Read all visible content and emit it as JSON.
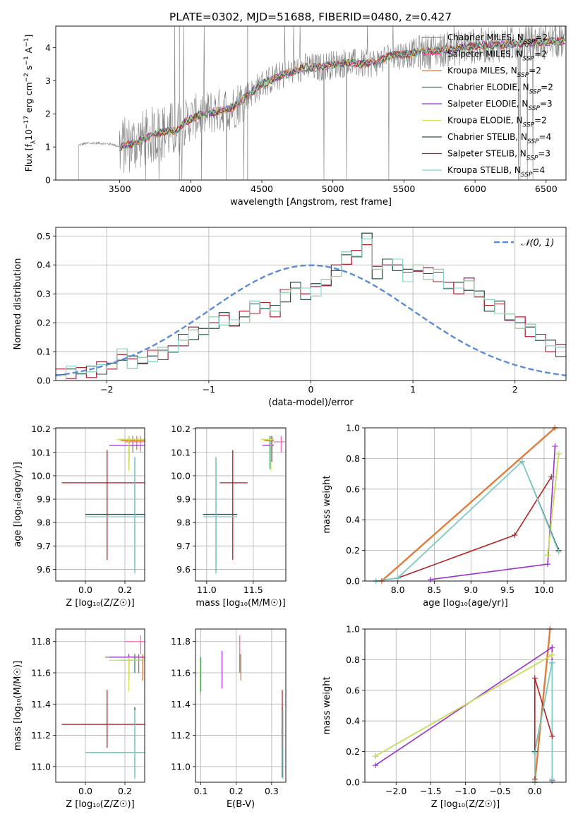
{
  "figure_title": "PLATE=0302, MJD=51688, FIBERID=0480, z=0.427",
  "colors": {
    "chabrier_miles": "#808080",
    "salpeter_miles": "#ff69b4",
    "kroupa_miles": "#e07b39",
    "chabrier_elodie": "#2e8b57",
    "salpeter_elodie": "#9932cc",
    "kroupa_elodie": "#d4e157",
    "chabrier_stelib": "#2f4f4f",
    "salpeter_stelib": "#b22222",
    "kroupa_stelib": "#7fd3c9",
    "data_gray": "#808080",
    "normal_curve": "#5b8bd9",
    "grid": "#b0b0b0"
  },
  "legend_spectrum": [
    {
      "name": "Chabrier MILES",
      "n": "2",
      "color_key": "chabrier_miles"
    },
    {
      "name": "Salpeter MILES",
      "n": "2",
      "color_key": "salpeter_miles"
    },
    {
      "name": "Kroupa MILES",
      "n": "2",
      "color_key": "kroupa_miles"
    },
    {
      "name": "Chabrier ELODIE",
      "n": "2",
      "color_key": "chabrier_elodie"
    },
    {
      "name": "Salpeter ELODIE",
      "n": "3",
      "color_key": "salpeter_elodie"
    },
    {
      "name": "Kroupa ELODIE",
      "n": "2",
      "color_key": "kroupa_elodie"
    },
    {
      "name": "Chabrier STELIB",
      "n": "4",
      "color_key": "chabrier_stelib"
    },
    {
      "name": "Salpeter STELIB",
      "n": "3",
      "color_key": "salpeter_stelib"
    },
    {
      "name": "Kroupa STELIB",
      "n": "4",
      "color_key": "kroupa_stelib"
    }
  ],
  "legend_hist": "𝒩(0, 1)",
  "chart_data": [
    {
      "id": "spectrum",
      "type": "line",
      "xlabel": "wavelength [Angstrom, rest frame]",
      "ylabel_parts": [
        "Flux [f",
        "λ",
        "10",
        "−17",
        " erg cm",
        "−2",
        " s",
        "−1",
        " A",
        "−1",
        "]"
      ],
      "xlim": [
        3050,
        6640
      ],
      "ylim": [
        0,
        4.65
      ],
      "xticks": [
        3500,
        4000,
        4500,
        5000,
        5500,
        6000,
        6500
      ],
      "yticks": [
        0,
        1,
        2,
        3,
        4
      ],
      "grid": false,
      "legend_position": "top-right",
      "continuum_nodes": [
        [
          3210,
          1.05
        ],
        [
          3250,
          1.1
        ],
        [
          3350,
          1.12
        ],
        [
          3450,
          1.08
        ],
        [
          3500,
          1.0
        ],
        [
          3600,
          1.12
        ],
        [
          3700,
          1.3
        ],
        [
          3800,
          1.45
        ],
        [
          3900,
          1.5
        ],
        [
          3960,
          1.75
        ],
        [
          4050,
          1.95
        ],
        [
          4150,
          2.05
        ],
        [
          4300,
          2.2
        ],
        [
          4400,
          2.55
        ],
        [
          4500,
          2.9
        ],
        [
          4600,
          3.1
        ],
        [
          4700,
          3.25
        ],
        [
          4800,
          3.4
        ],
        [
          4900,
          3.4
        ],
        [
          5000,
          3.5
        ],
        [
          5100,
          3.55
        ],
        [
          5200,
          3.5
        ],
        [
          5300,
          3.55
        ],
        [
          5400,
          3.75
        ],
        [
          5600,
          3.85
        ],
        [
          5800,
          3.95
        ],
        [
          6000,
          4.05
        ],
        [
          6200,
          4.1
        ],
        [
          6400,
          4.15
        ],
        [
          6600,
          4.2
        ]
      ]
    },
    {
      "id": "residuals",
      "type": "histogram",
      "xlabel": "(data-model)/error",
      "ylabel": "Normed distribution",
      "xlim": [
        -2.5,
        2.5
      ],
      "ylim": [
        0,
        0.53
      ],
      "xticks": [
        -2,
        -1,
        0,
        1,
        2
      ],
      "yticks": [
        0,
        0.1,
        0.2,
        0.3,
        0.4,
        0.5
      ],
      "grid": true,
      "legend_position": "top-right",
      "bin_width": 0.1,
      "bin_start": -2.5,
      "base_values": [
        0.02,
        0.025,
        0.035,
        0.03,
        0.04,
        0.05,
        0.09,
        0.06,
        0.07,
        0.085,
        0.09,
        0.11,
        0.14,
        0.16,
        0.17,
        0.2,
        0.21,
        0.2,
        0.22,
        0.25,
        0.26,
        0.24,
        0.29,
        0.33,
        0.3,
        0.31,
        0.34,
        0.38,
        0.42,
        0.44,
        0.49,
        0.37,
        0.41,
        0.4,
        0.36,
        0.39,
        0.37,
        0.36,
        0.33,
        0.32,
        0.33,
        0.3,
        0.26,
        0.25,
        0.22,
        0.2,
        0.17,
        0.15,
        0.12,
        0.1,
        0.11,
        0.08,
        0.08,
        0.07,
        0.04,
        0.05,
        0.045,
        0.035,
        0.03,
        0.025
      ],
      "perturb": [
        0.0,
        0.015,
        -0.012,
        0.02,
        -0.018,
        0.01,
        -0.02,
        0.025,
        -0.01
      ]
    },
    {
      "id": "age_vs_Z",
      "type": "scatter",
      "xlabel": "Z [log₁₀(Z/Z☉)]",
      "ylabel": "age  [log₁₀(age/yr)]",
      "xlim": [
        -0.15,
        0.3
      ],
      "ylim": [
        9.55,
        10.205
      ],
      "xticks": [
        0.0,
        0.2
      ],
      "yticks": [
        9.6,
        9.7,
        9.8,
        9.9,
        10.0,
        10.1,
        10.2
      ],
      "grid": true,
      "points": [
        {
          "x": 0.24,
          "y": 10.155,
          "xl": 0.17,
          "xh": 0.3,
          "yl": 10.1,
          "yh": 10.17,
          "color_key": "chabrier_miles"
        },
        {
          "x": 0.28,
          "y": 10.145,
          "xl": 0.2,
          "xh": 0.3,
          "yl": 10.1,
          "yh": 10.17,
          "color_key": "salpeter_miles"
        },
        {
          "x": 0.26,
          "y": 10.15,
          "xl": 0.18,
          "xh": 0.3,
          "yl": 10.11,
          "yh": 10.17,
          "color_key": "kroupa_miles"
        },
        {
          "x": 0.22,
          "y": 10.155,
          "xl": 0.17,
          "xh": 0.3,
          "yl": 10.03,
          "yh": 10.17,
          "color_key": "chabrier_elodie"
        },
        {
          "x": 0.22,
          "y": 10.13,
          "xl": 0.12,
          "xh": 0.3,
          "yl": 10.06,
          "yh": 10.17,
          "color_key": "salpeter_elodie"
        },
        {
          "x": 0.22,
          "y": 10.155,
          "xl": 0.16,
          "xh": 0.3,
          "yl": 10.02,
          "yh": 10.17,
          "color_key": "kroupa_elodie"
        },
        {
          "x": 0.25,
          "y": 9.835,
          "xl": 0.0,
          "xh": 0.3,
          "yl": 9.59,
          "yh": 10.08,
          "color_key": "chabrier_stelib"
        },
        {
          "x": 0.11,
          "y": 9.97,
          "xl": -0.12,
          "xh": 0.3,
          "yl": 9.64,
          "yh": 10.11,
          "color_key": "salpeter_stelib"
        },
        {
          "x": 0.25,
          "y": 9.825,
          "xl": 0.0,
          "xh": 0.3,
          "yl": 9.58,
          "yh": 10.08,
          "color_key": "kroupa_stelib"
        }
      ]
    },
    {
      "id": "age_vs_mass",
      "type": "scatter",
      "xlabel": "mass [log₁₀(M/M☉)]",
      "ylabel": "",
      "xlim": [
        10.88,
        11.85
      ],
      "ylim": [
        9.55,
        10.205
      ],
      "xticks": [
        11.0,
        11.5
      ],
      "yticks": [
        9.6,
        9.7,
        9.8,
        9.9,
        10.0,
        10.1,
        10.2
      ],
      "grid": true,
      "points": [
        {
          "x": 11.7,
          "y": 10.155,
          "xl": 11.6,
          "xh": 11.72,
          "yl": 10.1,
          "yh": 10.17,
          "color_key": "chabrier_miles"
        },
        {
          "x": 11.8,
          "y": 10.145,
          "xl": 11.72,
          "xh": 11.84,
          "yl": 10.1,
          "yh": 10.17,
          "color_key": "salpeter_miles"
        },
        {
          "x": 11.7,
          "y": 10.15,
          "xl": 11.62,
          "xh": 11.72,
          "yl": 10.11,
          "yh": 10.17,
          "color_key": "kroupa_miles"
        },
        {
          "x": 11.68,
          "y": 10.155,
          "xl": 11.6,
          "xh": 11.72,
          "yl": 10.03,
          "yh": 10.17,
          "color_key": "chabrier_elodie"
        },
        {
          "x": 11.7,
          "y": 10.13,
          "xl": 11.6,
          "xh": 11.72,
          "yl": 10.06,
          "yh": 10.17,
          "color_key": "salpeter_elodie"
        },
        {
          "x": 11.69,
          "y": 10.155,
          "xl": 11.58,
          "xh": 11.72,
          "yl": 10.02,
          "yh": 10.17,
          "color_key": "kroupa_elodie"
        },
        {
          "x": 11.1,
          "y": 9.835,
          "xl": 10.96,
          "xh": 11.33,
          "yl": 9.59,
          "yh": 10.08,
          "color_key": "chabrier_stelib"
        },
        {
          "x": 11.28,
          "y": 9.97,
          "xl": 11.14,
          "xh": 11.44,
          "yl": 9.64,
          "yh": 10.11,
          "color_key": "salpeter_stelib"
        },
        {
          "x": 11.1,
          "y": 9.825,
          "xl": 10.96,
          "xh": 11.33,
          "yl": 9.58,
          "yh": 10.08,
          "color_key": "kroupa_stelib"
        }
      ]
    },
    {
      "id": "mass_weight_vs_age",
      "type": "line",
      "xlabel": "age  [log₁₀(age/yr)]",
      "ylabel": "mass weight",
      "xlim": [
        7.55,
        10.3
      ],
      "ylim": [
        0,
        1.0
      ],
      "xticks": [
        8.0,
        8.5,
        9.0,
        9.5,
        10.0
      ],
      "yticks": [
        0.0,
        0.2,
        0.4,
        0.6,
        0.8,
        1.0
      ],
      "grid": true,
      "series": [
        {
          "color_key": "chabrier_miles",
          "x": [
            7.78,
            10.15
          ],
          "y": [
            0.0,
            1.0
          ]
        },
        {
          "color_key": "salpeter_miles",
          "x": [
            7.78,
            10.15
          ],
          "y": [
            0.0,
            1.0
          ]
        },
        {
          "color_key": "kroupa_miles",
          "x": [
            7.78,
            10.15
          ],
          "y": [
            0.0,
            1.0
          ]
        },
        {
          "color_key": "chabrier_elodie",
          "x": [
            10.05,
            10.2
          ],
          "y": [
            0.17,
            0.83
          ]
        },
        {
          "color_key": "salpeter_elodie",
          "x": [
            8.45,
            10.05,
            10.15
          ],
          "y": [
            0.01,
            0.11,
            0.88
          ]
        },
        {
          "color_key": "kroupa_elodie",
          "x": [
            10.05,
            10.2
          ],
          "y": [
            0.17,
            0.83
          ]
        },
        {
          "color_key": "chabrier_stelib",
          "x": [
            7.7,
            8.0,
            9.7,
            10.2
          ],
          "y": [
            0.0,
            0.02,
            0.78,
            0.2
          ]
        },
        {
          "color_key": "salpeter_stelib",
          "x": [
            8.0,
            9.6,
            10.1
          ],
          "y": [
            0.02,
            0.3,
            0.68
          ]
        },
        {
          "color_key": "kroupa_stelib",
          "x": [
            7.7,
            8.0,
            9.7,
            10.2
          ],
          "y": [
            0.0,
            0.02,
            0.78,
            0.19
          ]
        }
      ]
    },
    {
      "id": "mass_vs_Z",
      "type": "scatter",
      "xlabel": "Z [log₁₀(Z/Z☉)]",
      "ylabel": "mass [log₁₀(M/M☉)]",
      "xlim": [
        -0.15,
        0.3
      ],
      "ylim": [
        10.9,
        11.88
      ],
      "xticks": [
        0.0,
        0.2
      ],
      "yticks": [
        11.0,
        11.2,
        11.4,
        11.6,
        11.8
      ],
      "grid": true,
      "points": [
        {
          "x": 0.27,
          "y": 11.7,
          "xl": 0.1,
          "xh": 0.3,
          "yl": 11.6,
          "yh": 11.72,
          "color_key": "chabrier_miles"
        },
        {
          "x": 0.28,
          "y": 11.8,
          "xl": 0.2,
          "xh": 0.3,
          "yl": 11.72,
          "yh": 11.84,
          "color_key": "salpeter_miles"
        },
        {
          "x": 0.29,
          "y": 11.7,
          "xl": 0.22,
          "xh": 0.3,
          "yl": 11.55,
          "yh": 11.72,
          "color_key": "kroupa_miles"
        },
        {
          "x": 0.25,
          "y": 11.68,
          "xl": 0.17,
          "xh": 0.3,
          "yl": 11.6,
          "yh": 11.72,
          "color_key": "chabrier_elodie"
        },
        {
          "x": 0.22,
          "y": 11.7,
          "xl": 0.12,
          "xh": 0.3,
          "yl": 11.55,
          "yh": 11.72,
          "color_key": "salpeter_elodie"
        },
        {
          "x": 0.22,
          "y": 11.68,
          "xl": 0.12,
          "xh": 0.3,
          "yl": 11.48,
          "yh": 11.7,
          "color_key": "kroupa_elodie"
        },
        {
          "x": 0.25,
          "y": 11.09,
          "xl": 0.0,
          "xh": 0.3,
          "yl": 10.93,
          "yh": 11.38,
          "color_key": "chabrier_stelib"
        },
        {
          "x": 0.11,
          "y": 11.27,
          "xl": -0.12,
          "xh": 0.3,
          "yl": 11.12,
          "yh": 11.49,
          "color_key": "salpeter_stelib"
        },
        {
          "x": 0.25,
          "y": 11.09,
          "xl": 0.0,
          "xh": 0.3,
          "yl": 10.92,
          "yh": 11.36,
          "color_key": "kroupa_stelib"
        }
      ]
    },
    {
      "id": "mass_vs_ebv",
      "type": "scatter",
      "xlabel": "E(B-V)",
      "ylabel": "",
      "xlim": [
        0.085,
        0.34
      ],
      "ylim": [
        10.9,
        11.88
      ],
      "xticks": [
        0.1,
        0.2,
        0.3
      ],
      "yticks": [
        11.0,
        11.2,
        11.4,
        11.6,
        11.8
      ],
      "grid": true,
      "points": [
        {
          "x": 0.21,
          "y": 11.7,
          "yl": 11.6,
          "yh": 11.72,
          "color_key": "chabrier_miles"
        },
        {
          "x": 0.21,
          "y": 11.8,
          "yl": 11.72,
          "yh": 11.84,
          "color_key": "salpeter_miles"
        },
        {
          "x": 0.213,
          "y": 11.62,
          "yl": 11.55,
          "yh": 11.72,
          "color_key": "kroupa_miles"
        },
        {
          "x": 0.1,
          "y": 11.62,
          "yl": 11.48,
          "yh": 11.7,
          "color_key": "chabrier_elodie"
        },
        {
          "x": 0.16,
          "y": 11.62,
          "yl": 11.5,
          "yh": 11.74,
          "color_key": "salpeter_elodie"
        },
        {
          "x": 0.098,
          "y": 11.6,
          "yl": 11.46,
          "yh": 11.7,
          "color_key": "kroupa_elodie"
        },
        {
          "x": 0.33,
          "y": 11.09,
          "yl": 10.93,
          "yh": 11.38,
          "color_key": "chabrier_stelib"
        },
        {
          "x": 0.33,
          "y": 11.27,
          "yl": 11.12,
          "yh": 11.49,
          "color_key": "salpeter_stelib"
        },
        {
          "x": 0.332,
          "y": 11.09,
          "yl": 10.92,
          "yh": 11.36,
          "color_key": "kroupa_stelib"
        }
      ]
    },
    {
      "id": "mass_weight_vs_Z",
      "type": "line",
      "xlabel": "Z [log₁₀(Z/Z☉)]",
      "ylabel": "mass weight",
      "xlim": [
        -2.45,
        0.45
      ],
      "ylim": [
        0,
        1.0
      ],
      "xticks": [
        -2.0,
        -1.5,
        -1.0,
        -0.5,
        0.0
      ],
      "yticks": [
        0.0,
        0.2,
        0.4,
        0.6,
        0.8,
        1.0
      ],
      "grid": true,
      "series": [
        {
          "color_key": "chabrier_miles",
          "x": [
            0.0,
            0.22
          ],
          "y": [
            0.0,
            1.0
          ]
        },
        {
          "color_key": "salpeter_miles",
          "x": [
            0.0,
            0.22
          ],
          "y": [
            0.0,
            1.0
          ]
        },
        {
          "color_key": "kroupa_miles",
          "x": [
            0.0,
            0.22
          ],
          "y": [
            0.0,
            1.0
          ]
        },
        {
          "color_key": "chabrier_elodie",
          "x": [
            -2.3,
            0.25
          ],
          "y": [
            0.17,
            0.83
          ]
        },
        {
          "color_key": "salpeter_elodie",
          "x": [
            -2.3,
            0.25,
            0.25
          ],
          "y": [
            0.11,
            0.88,
            0.01
          ]
        },
        {
          "color_key": "kroupa_elodie",
          "x": [
            -2.3,
            0.25
          ],
          "y": [
            0.17,
            0.83
          ]
        },
        {
          "color_key": "chabrier_stelib",
          "x": [
            0.0,
            0.0,
            0.25,
            0.25
          ],
          "y": [
            0.0,
            0.2,
            0.78,
            0.02
          ]
        },
        {
          "color_key": "salpeter_stelib",
          "x": [
            0.0,
            0.0,
            0.25
          ],
          "y": [
            0.02,
            0.68,
            0.3
          ]
        },
        {
          "color_key": "kroupa_stelib",
          "x": [
            0.0,
            0.0,
            0.25,
            0.25
          ],
          "y": [
            0.0,
            0.19,
            0.78,
            0.02
          ]
        }
      ]
    }
  ]
}
